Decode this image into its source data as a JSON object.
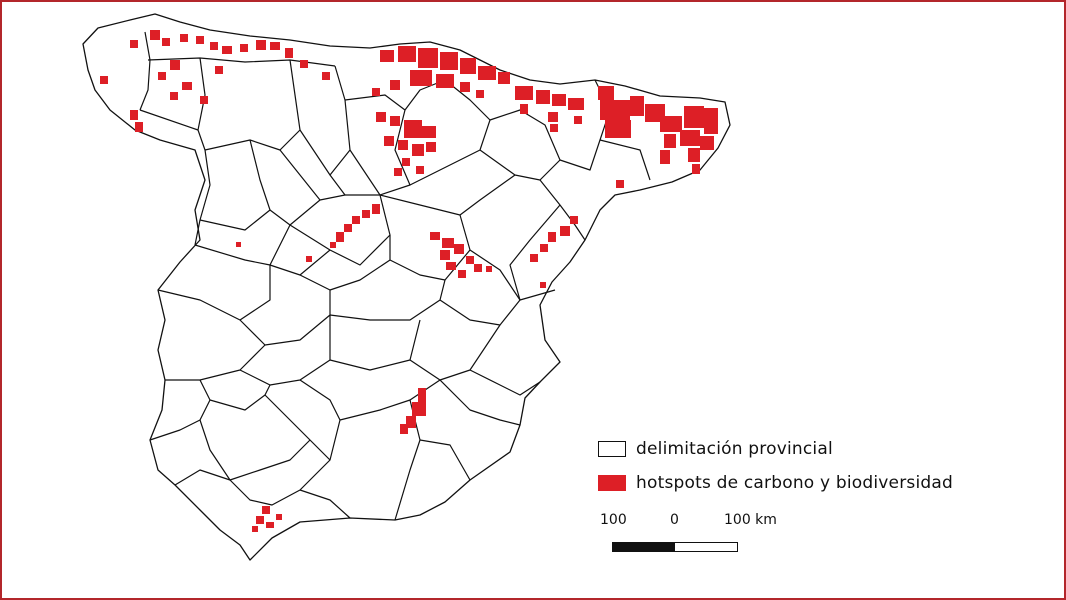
{
  "map": {
    "region": "Spain (peninsular)"
  },
  "legend": {
    "items": [
      {
        "label": "delimitación provincial",
        "swatch": "outline",
        "color": "#111111"
      },
      {
        "label": "hotspots de carbono y biodiversidad",
        "swatch": "fill",
        "color": "#dd1f26"
      }
    ]
  },
  "scale": {
    "left_label": "100",
    "mid_label": "0",
    "right_label": "100 km"
  },
  "colors": {
    "hotspot": "#dd1f26",
    "boundary": "#111111",
    "frame": "#b3262b"
  }
}
